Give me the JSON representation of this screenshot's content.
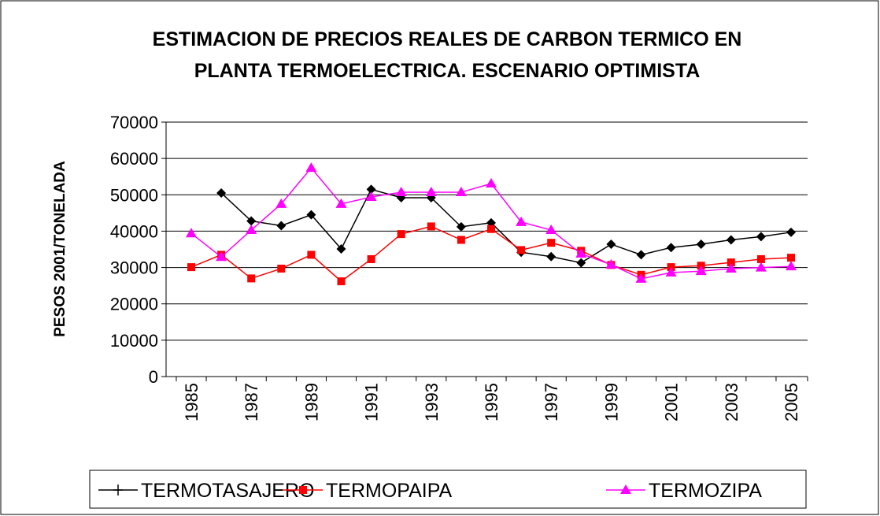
{
  "chart_data": {
    "type": "line",
    "title": [
      "ESTIMACION DE PRECIOS REALES DE CARBON TERMICO EN",
      "PLANTA TERMOELECTRICA. ESCENARIO OPTIMISTA"
    ],
    "y_label": "PESOS 2001/TONELADA",
    "categories": [
      "1985",
      null,
      "1987",
      null,
      "1989",
      null,
      "1991",
      null,
      "1993",
      null,
      "1995",
      null,
      "1997",
      null,
      "1999",
      null,
      "2001",
      null,
      "2003",
      null,
      "2005"
    ],
    "ylim": [
      0,
      70000
    ],
    "yticks": [
      0,
      10000,
      20000,
      30000,
      40000,
      50000,
      60000,
      70000
    ],
    "grid": true,
    "legend": "bottom",
    "series": [
      {
        "name": "TERMOTASAJERO",
        "color": "#000000",
        "marker": "plus",
        "values": [
          null,
          50500,
          42800,
          41500,
          44500,
          35100,
          51500,
          49200,
          49200,
          41200,
          42300,
          34200,
          33000,
          31300,
          36400,
          33500,
          35500,
          36400,
          37600,
          38500,
          39700
        ]
      },
      {
        "name": "TERMOPAIPA",
        "color": "#ff0000",
        "marker": "square",
        "values": [
          30100,
          33500,
          27000,
          29700,
          33500,
          26200,
          32300,
          39200,
          41300,
          37600,
          40600,
          34800,
          36800,
          34600,
          30700,
          28000,
          30100,
          30500,
          31400,
          32300,
          32700
        ]
      },
      {
        "name": "TERMOZIPA",
        "color": "#ff00ff",
        "marker": "triangle",
        "values": [
          39400,
          32900,
          40300,
          47500,
          57400,
          47500,
          49400,
          50700,
          50700,
          50700,
          53100,
          42500,
          40300,
          33800,
          30800,
          26900,
          28600,
          29000,
          29700,
          30000,
          30300
        ]
      }
    ]
  }
}
